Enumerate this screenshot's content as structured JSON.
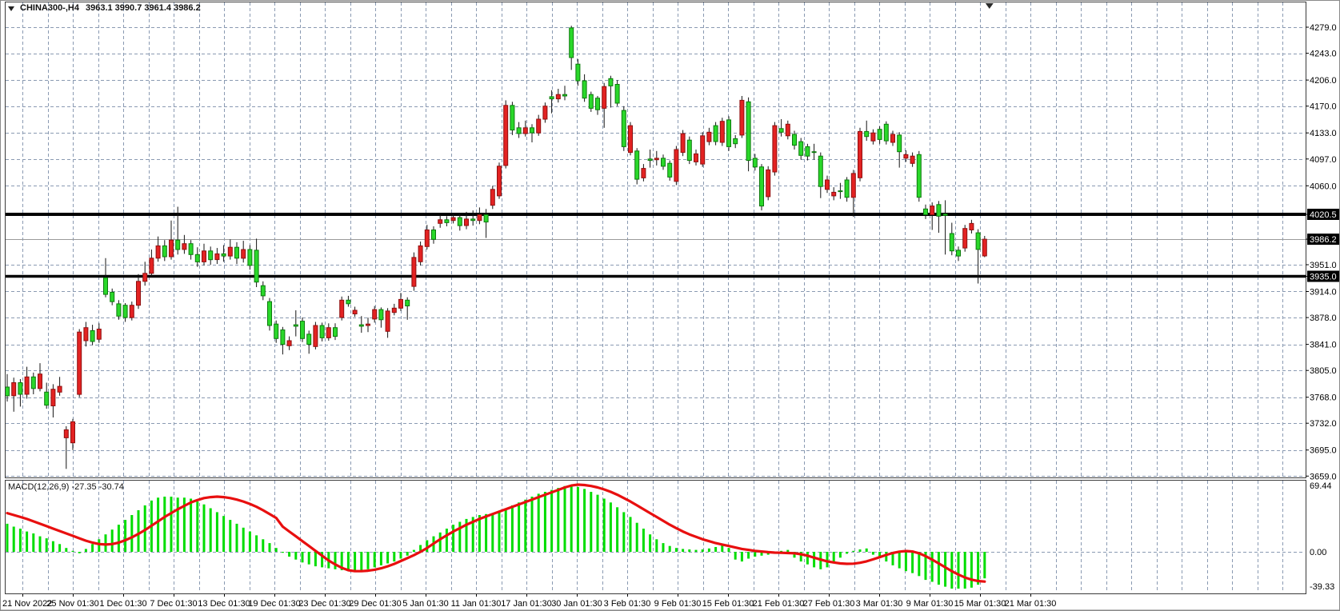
{
  "title": {
    "symbol_period": "CHINA300-,H4",
    "ohlc": "3963.1 3990.7 3961.4 3986.2"
  },
  "indicator_label": "MACD(12,26,9) -27.35 -30.74",
  "price_axis": {
    "labels": [
      {
        "text": "4279.0",
        "value": 4279.0,
        "highlight": false
      },
      {
        "text": "4243.0",
        "value": 4243.0,
        "highlight": false
      },
      {
        "text": "4206.0",
        "value": 4206.0,
        "highlight": false
      },
      {
        "text": "4170.0",
        "value": 4170.0,
        "highlight": false
      },
      {
        "text": "4133.0",
        "value": 4133.0,
        "highlight": false
      },
      {
        "text": "4097.0",
        "value": 4097.0,
        "highlight": false
      },
      {
        "text": "4060.0",
        "value": 4060.0,
        "highlight": false
      },
      {
        "text": "4020.5",
        "value": 4020.5,
        "highlight": true
      },
      {
        "text": "3986.2",
        "value": 3986.2,
        "highlight": true
      },
      {
        "text": "3951.0",
        "value": 3951.0,
        "highlight": false
      },
      {
        "text": "3935.0",
        "value": 3935.0,
        "highlight": true
      },
      {
        "text": "3914.0",
        "value": 3914.0,
        "highlight": false
      },
      {
        "text": "3878.0",
        "value": 3878.0,
        "highlight": false
      },
      {
        "text": "3841.0",
        "value": 3841.0,
        "highlight": false
      },
      {
        "text": "3805.0",
        "value": 3805.0,
        "highlight": false
      },
      {
        "text": "3768.0",
        "value": 3768.0,
        "highlight": false
      },
      {
        "text": "3732.0",
        "value": 3732.0,
        "highlight": false
      },
      {
        "text": "3695.0",
        "value": 3695.0,
        "highlight": false
      },
      {
        "text": "3659.0",
        "value": 3659.0,
        "highlight": false
      }
    ]
  },
  "macd_axis": {
    "labels": [
      {
        "text": "69.44",
        "value": 69.44
      },
      {
        "text": "0.00",
        "value": 0
      },
      {
        "text": "-39.33",
        "value": -39.33
      }
    ]
  },
  "time_axis": {
    "labels": [
      "21 Nov 2022",
      "25 Nov 01:30",
      "1 Dec 01:30",
      "7 Dec 01:30",
      "13 Dec 01:30",
      "19 Dec 01:30",
      "23 Dec 01:30",
      "29 Dec 01:30",
      "5 Jan 01:30",
      "11 Jan 01:30",
      "17 Jan 01:30",
      "30 Jan 01:30",
      "3 Feb 01:30",
      "9 Feb 01:30",
      "15 Feb 01:30",
      "21 Feb 01:30",
      "27 Feb 01:30",
      "3 Mar 01:30",
      "9 Mar 01:30",
      "15 Mar 01:30",
      "21 Mar 01:30"
    ]
  },
  "colors": {
    "bull_body": "#e32222",
    "bull_border": "#8f0f0f",
    "bear_body": "#2ad82a",
    "bear_border": "#0c7a0c",
    "wick": "#141414",
    "grid": "#8a9ab2",
    "horizontal_line": "#000000",
    "current_price_line": "#9b9b9b",
    "macd_histogram": "#00dd00",
    "macd_signal": "#e80f0f",
    "axis_text": "#000000",
    "highlight_label_bg": "#000000",
    "highlight_label_fg": "#ffffff",
    "frame": "#3a3a3a"
  },
  "chart_data": {
    "type": "candlestick",
    "symbol": "CHINA300-",
    "period": "H4",
    "current_bar": {
      "open": 3963.1,
      "high": 3990.7,
      "low": 3961.4,
      "close": 3986.2
    },
    "price_lines": {
      "upper_horizontal_line": 4020.5,
      "lower_horizontal_line": 3935.0,
      "current_price": 3986.2
    },
    "ylim": [
      3659.0,
      4279.0
    ],
    "grid": true,
    "candles_ohlc": [
      [
        3782,
        3800,
        3762,
        3770
      ],
      [
        3770,
        3795,
        3748,
        3788
      ],
      [
        3788,
        3793,
        3755,
        3772
      ],
      [
        3772,
        3810,
        3766,
        3796
      ],
      [
        3796,
        3802,
        3772,
        3780
      ],
      [
        3780,
        3815,
        3776,
        3800
      ],
      [
        3775,
        3788,
        3752,
        3757
      ],
      [
        3756,
        3786,
        3740,
        3779
      ],
      [
        3775,
        3796,
        3770,
        3783
      ],
      [
        3712,
        3728,
        3669,
        3723
      ],
      [
        3705,
        3738,
        3695,
        3734
      ],
      [
        3772,
        3862,
        3768,
        3858
      ],
      [
        3846,
        3872,
        3838,
        3864
      ],
      [
        3860,
        3868,
        3840,
        3845
      ],
      [
        3848,
        3870,
        3843,
        3862
      ],
      [
        3933,
        3960,
        3906,
        3910
      ],
      [
        3913,
        3918,
        3895,
        3900
      ],
      [
        3897,
        3902,
        3875,
        3880
      ],
      [
        3895,
        3898,
        3872,
        3878
      ],
      [
        3878,
        3900,
        3874,
        3895
      ],
      [
        3895,
        3938,
        3890,
        3928
      ],
      [
        3928,
        3955,
        3922,
        3939
      ],
      [
        3939,
        3972,
        3934,
        3960
      ],
      [
        3960,
        3990,
        3955,
        3977
      ],
      [
        3977,
        3985,
        3956,
        3962
      ],
      [
        3962,
        4012,
        3958,
        3985
      ],
      [
        3985,
        4031,
        3965,
        3972
      ],
      [
        3972,
        3992,
        3966,
        3980
      ],
      [
        3980,
        3985,
        3958,
        3965
      ],
      [
        3965,
        3975,
        3948,
        3955
      ],
      [
        3955,
        3980,
        3950,
        3970
      ],
      [
        3970,
        3976,
        3951,
        3958
      ],
      [
        3958,
        3974,
        3952,
        3966
      ],
      [
        3966,
        3978,
        3955,
        3963
      ],
      [
        3963,
        3986,
        3958,
        3975
      ],
      [
        3975,
        3982,
        3952,
        3960
      ],
      [
        3960,
        3984,
        3954,
        3972
      ],
      [
        3972,
        3978,
        3944,
        3950
      ],
      [
        3971,
        3987,
        3920,
        3927
      ],
      [
        3922,
        3928,
        3902,
        3908
      ],
      [
        3900,
        3905,
        3860,
        3867
      ],
      [
        3869,
        3874,
        3843,
        3849
      ],
      [
        3861,
        3865,
        3827,
        3841
      ],
      [
        3839,
        3852,
        3833,
        3846
      ],
      [
        3868,
        3888,
        3852,
        3866
      ],
      [
        3873,
        3878,
        3844,
        3849
      ],
      [
        3855,
        3860,
        3828,
        3841
      ],
      [
        3838,
        3872,
        3834,
        3867
      ],
      [
        3867,
        3871,
        3845,
        3850
      ],
      [
        3850,
        3870,
        3846,
        3864
      ],
      [
        3864,
        3870,
        3847,
        3852
      ],
      [
        3878,
        3907,
        3874,
        3902
      ],
      [
        3902,
        3908,
        3893,
        3897
      ],
      [
        3883,
        3893,
        3879,
        3888
      ],
      [
        3868,
        3880,
        3857,
        3866
      ],
      [
        3867,
        3878,
        3858,
        3869
      ],
      [
        3876,
        3894,
        3871,
        3889
      ],
      [
        3889,
        3892,
        3864,
        3875
      ],
      [
        3859,
        3891,
        3850,
        3887
      ],
      [
        3885,
        3897,
        3881,
        3891
      ],
      [
        3891,
        3912,
        3887,
        3903
      ],
      [
        3902,
        3906,
        3875,
        3894
      ],
      [
        3921,
        3968,
        3915,
        3961
      ],
      [
        3955,
        3983,
        3950,
        3977
      ],
      [
        3976,
        4006,
        3972,
        3999
      ],
      [
        3999,
        4004,
        3980,
        3986
      ],
      [
        4008,
        4020,
        4002,
        4013
      ],
      [
        4013,
        4018,
        4004,
        4009
      ],
      [
        4012,
        4022,
        4008,
        4016
      ],
      [
        4016,
        4021,
        3998,
        4005
      ],
      [
        4005,
        4024,
        4000,
        4014
      ],
      [
        4014,
        4026,
        4005,
        4012
      ],
      [
        4012,
        4030,
        4007,
        4020
      ],
      [
        4020,
        4028,
        3988,
        4010
      ],
      [
        4033,
        4060,
        4028,
        4055
      ],
      [
        4046,
        4092,
        4042,
        4087
      ],
      [
        4088,
        4178,
        4084,
        4171
      ],
      [
        4171,
        4176,
        4130,
        4137
      ],
      [
        4140,
        4148,
        4126,
        4132
      ],
      [
        4132,
        4150,
        4128,
        4140
      ],
      [
        4140,
        4145,
        4120,
        4133
      ],
      [
        4133,
        4158,
        4129,
        4152
      ],
      [
        4152,
        4175,
        4147,
        4170
      ],
      [
        4183,
        4192,
        4160,
        4180
      ],
      [
        4180,
        4194,
        4175,
        4186
      ],
      [
        4186,
        4198,
        4178,
        4184
      ],
      [
        4278,
        4281,
        4220,
        4237
      ],
      [
        4228,
        4235,
        4198,
        4205
      ],
      [
        4205,
        4214,
        4176,
        4181
      ],
      [
        4186,
        4190,
        4162,
        4167
      ],
      [
        4181,
        4184,
        4158,
        4165
      ],
      [
        4167,
        4202,
        4140,
        4197
      ],
      [
        4208,
        4212,
        4168,
        4198
      ],
      [
        4200,
        4206,
        4170,
        4174
      ],
      [
        4164,
        4170,
        4108,
        4114
      ],
      [
        4106,
        4148,
        4102,
        4143
      ],
      [
        4108,
        4112,
        4062,
        4069
      ],
      [
        4071,
        4090,
        4066,
        4084
      ],
      [
        4097,
        4110,
        4085,
        4095
      ],
      [
        4096,
        4108,
        4088,
        4098
      ],
      [
        4098,
        4103,
        4082,
        4087
      ],
      [
        4091,
        4095,
        4067,
        4072
      ],
      [
        4066,
        4115,
        4061,
        4110
      ],
      [
        4106,
        4137,
        4101,
        4132
      ],
      [
        4123,
        4128,
        4090,
        4095
      ],
      [
        4093,
        4110,
        4088,
        4104
      ],
      [
        4090,
        4134,
        4086,
        4129
      ],
      [
        4121,
        4140,
        4116,
        4134
      ],
      [
        4143,
        4148,
        4116,
        4121
      ],
      [
        4120,
        4154,
        4115,
        4149
      ],
      [
        4151,
        4156,
        4108,
        4114
      ],
      [
        4125,
        4130,
        4112,
        4118
      ],
      [
        4130,
        4184,
        4126,
        4178
      ],
      [
        4176,
        4182,
        4080,
        4095
      ],
      [
        4098,
        4104,
        4081,
        4086
      ],
      [
        4086,
        4090,
        4026,
        4032
      ],
      [
        4045,
        4087,
        4040,
        4082
      ],
      [
        4079,
        4148,
        4074,
        4143
      ],
      [
        4139,
        4152,
        4128,
        4134
      ],
      [
        4129,
        4150,
        4124,
        4145
      ],
      [
        4131,
        4136,
        4110,
        4116
      ],
      [
        4121,
        4126,
        4096,
        4102
      ],
      [
        4114,
        4118,
        4095,
        4101
      ],
      [
        4107,
        4118,
        4096,
        4106
      ],
      [
        4101,
        4106,
        4043,
        4059
      ],
      [
        4055,
        4074,
        4050,
        4068
      ],
      [
        4046,
        4058,
        4040,
        4051
      ],
      [
        4053,
        4064,
        4042,
        4052
      ],
      [
        4068,
        4072,
        4038,
        4044
      ],
      [
        4044,
        4082,
        4017,
        4077
      ],
      [
        4071,
        4140,
        4066,
        4135
      ],
      [
        4135,
        4150,
        4122,
        4128
      ],
      [
        4122,
        4138,
        4117,
        4133
      ],
      [
        4138,
        4142,
        4118,
        4124
      ],
      [
        4145,
        4149,
        4117,
        4122
      ],
      [
        4120,
        4136,
        4115,
        4131
      ],
      [
        4130,
        4134,
        4085,
        4107
      ],
      [
        4098,
        4109,
        4093,
        4103
      ],
      [
        4091,
        4106,
        4086,
        4101
      ],
      [
        4103,
        4108,
        4038,
        4044
      ],
      [
        4028,
        4034,
        4014,
        4020
      ],
      [
        4020,
        4037,
        3999,
        4032
      ],
      [
        4034,
        4039,
        3995,
        4018
      ],
      [
        4021,
        4040,
        3965,
        4019
      ],
      [
        3994,
        4009,
        3964,
        3970
      ],
      [
        3971,
        3976,
        3956,
        3963
      ],
      [
        3974,
        4006,
        3969,
        4001
      ],
      [
        3999,
        4013,
        3994,
        4008
      ],
      [
        3995,
        4000,
        3925,
        3972
      ],
      [
        3963.1,
        3990.7,
        3961.4,
        3986.2
      ]
    ],
    "indicator": {
      "type": "MACD",
      "params": [
        12,
        26,
        9
      ],
      "macd_value": -27.35,
      "signal_value": -30.74,
      "scale_labels": [
        "69.44",
        "0.00",
        "-39.33"
      ],
      "histogram": [
        29,
        26,
        24,
        21,
        19,
        16,
        14,
        11,
        8,
        4,
        1,
        -1.5,
        3,
        8,
        13,
        18,
        23,
        28,
        33,
        38,
        43,
        48,
        53,
        56,
        57,
        57,
        56,
        56,
        55,
        52,
        49,
        45,
        41,
        37,
        33,
        29,
        25,
        21,
        17,
        13,
        9,
        4,
        -1,
        -5,
        -8,
        -11,
        -13,
        -15,
        -16,
        -17,
        -18,
        -19,
        -20,
        -20,
        -19,
        -18,
        -16,
        -14,
        -12,
        -10,
        -7,
        -4,
        2,
        7,
        12,
        16,
        20,
        24,
        28,
        31,
        34,
        36,
        38,
        39,
        40,
        42,
        45,
        48,
        51,
        54,
        57,
        60,
        62,
        64,
        66,
        68,
        69,
        67,
        65,
        62,
        59,
        55,
        51,
        46,
        41,
        36,
        30,
        24,
        18,
        13,
        9,
        6,
        4,
        3,
        2.5,
        2,
        2.5,
        3.5,
        5,
        8,
        4,
        -8,
        -10,
        -7,
        -5,
        -4,
        -3,
        -2,
        1,
        2,
        -6,
        -10,
        -13,
        -16,
        -18,
        -16,
        -10,
        -6,
        -2,
        1,
        2.5,
        3.5,
        -3,
        -6,
        -10,
        -14,
        -17,
        -20,
        -22,
        -25,
        -29,
        -31,
        -34,
        -36,
        -38,
        -38,
        -38,
        -37,
        -34,
        -27.4
      ],
      "signal_line": [
        40,
        38,
        36,
        34,
        31.5,
        29,
        26.5,
        24,
        21.5,
        19,
        16.5,
        14,
        11.5,
        9.5,
        8,
        7.5,
        8,
        9.5,
        12,
        15,
        18.5,
        22.5,
        27,
        31.5,
        36,
        40,
        44,
        47.5,
        51,
        53.5,
        55.5,
        56.5,
        57,
        56.5,
        55.5,
        54,
        52,
        49.5,
        46.5,
        43,
        39,
        35,
        26,
        21,
        16,
        11,
        6,
        1,
        -4,
        -9,
        -13,
        -16.5,
        -19,
        -20,
        -20,
        -19.5,
        -18.5,
        -17,
        -15,
        -12.5,
        -9.5,
        -6.5,
        -3.5,
        0,
        4,
        8.5,
        13,
        17,
        21,
        24.5,
        28,
        31,
        34,
        36.5,
        39,
        41.5,
        44,
        46.5,
        49,
        51.5,
        54,
        56.5,
        59,
        61.5,
        64,
        66.5,
        68.5,
        69.4,
        69,
        68,
        66.5,
        64.5,
        62,
        59,
        55.5,
        52,
        48,
        44,
        40,
        36,
        32,
        28,
        24.5,
        21,
        18,
        15.5,
        13,
        11,
        9,
        7.5,
        6,
        4.5,
        3,
        2,
        1,
        0.3,
        -0.3,
        -0.8,
        -1,
        -1.2,
        -1.5,
        -2.5,
        -4,
        -6,
        -8,
        -9.8,
        -11,
        -12,
        -12.4,
        -12.2,
        -11.3,
        -9.8,
        -7.8,
        -5.5,
        -3.2,
        -1.2,
        0.2,
        0.8,
        0.3,
        -1.5,
        -4.5,
        -8,
        -12,
        -16,
        -20,
        -23.5,
        -26.5,
        -28.8,
        -30.2,
        -30.74
      ]
    }
  }
}
